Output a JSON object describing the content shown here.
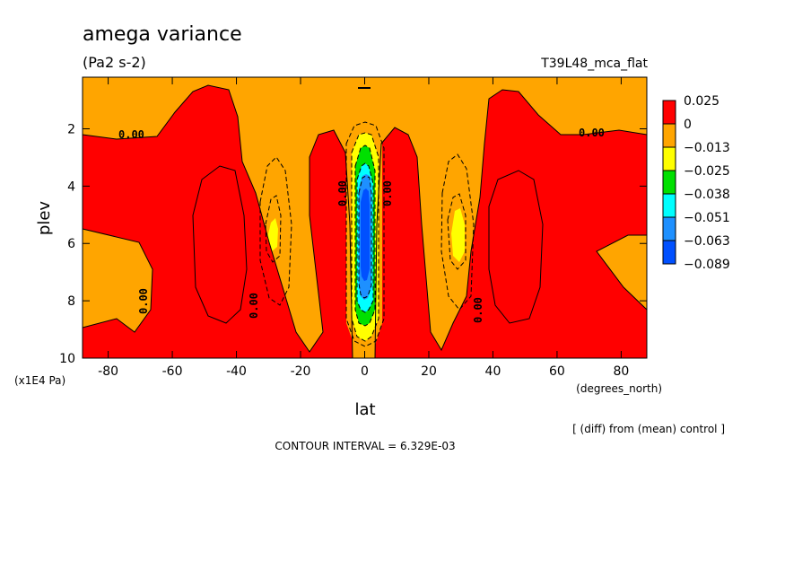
{
  "chart_data": {
    "type": "heatmap",
    "title": "amega variance",
    "units": "(Pa2 s-2)",
    "run_label": "T39L48_mca_flat",
    "xlabel": "lat",
    "x_units": "(degrees_north)",
    "ylabel": "plev",
    "y_units": "(x1E4 Pa)",
    "xlim": [
      -88,
      88
    ],
    "ylim": [
      10,
      0.2
    ],
    "x_ticks": [
      "-80",
      "-60",
      "-40",
      "-20",
      "0",
      "20",
      "40",
      "60",
      "80"
    ],
    "x_tick_values": [
      -80,
      -60,
      -40,
      -20,
      0,
      20,
      40,
      60,
      80
    ],
    "y_ticks": [
      "2",
      "4",
      "6",
      "8",
      "10"
    ],
    "y_tick_values": [
      2,
      4,
      6,
      8,
      10
    ],
    "note": "[ (diff) from (mean) control ]",
    "contour_interval": "CONTOUR INTERVAL = 6.329E-03",
    "contour_label": "0.00",
    "legend": {
      "labels": [
        "0.025",
        "0",
        "−0.013",
        "−0.025",
        "−0.038",
        "−0.051",
        "−0.063",
        "−0.089"
      ],
      "colors": [
        "#ff0000",
        "#ffa500",
        "#ffff00",
        "#00e000",
        "#00ffff",
        "#1e90ff",
        "#0050ff"
      ]
    },
    "colors": {
      "positive": "#ff0000",
      "near_zero": "#ffa500",
      "neg_small": "#ffff00",
      "neg_mid": "#00e000",
      "neg_large": "#00ffff",
      "neg_xlarge": "#1e90ff",
      "neg_max": "#0050ff"
    },
    "regions": [
      {
        "level": "positive",
        "note": "mid-latitude cores 20-80 deg both hemispheres"
      },
      {
        "level": "near_zero",
        "note": "upper levels and equatorial band"
      },
      {
        "level": "neg_small",
        "note": "small cells near ±30 deg, 5.5 x1E4 Pa"
      },
      {
        "level": "neg_max",
        "note": "equatorial minimum 2.5-9 x1E4 Pa"
      }
    ]
  }
}
